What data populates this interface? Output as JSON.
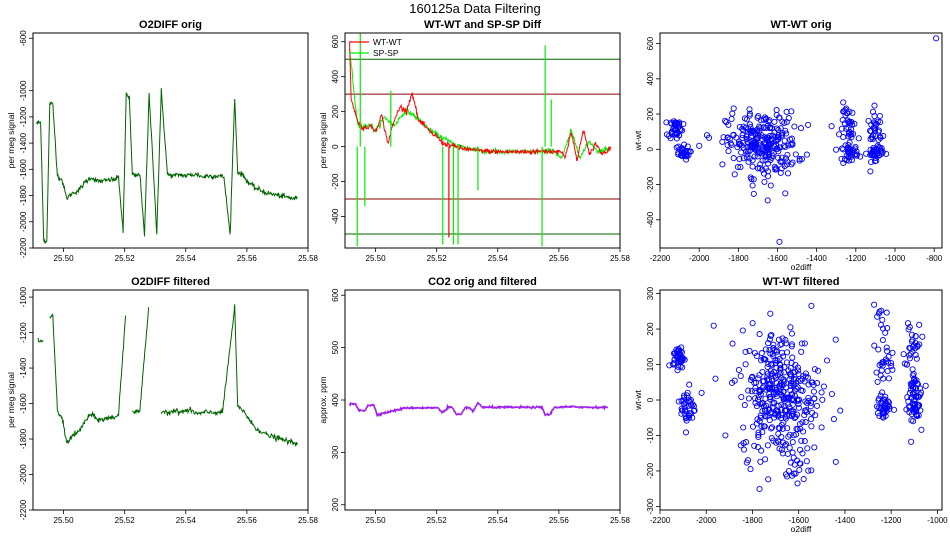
{
  "figure": {
    "title": "160125a   Data Filtering"
  },
  "colors": {
    "o2diff": "#006400",
    "wtwt": "#ff0000",
    "spsp": "#00ee00",
    "scatter": "#0000ff",
    "co2": "#a020f0",
    "line_red_lim": "#8b0000",
    "line_green_lim": "#006400"
  },
  "chart_data": [
    {
      "id": "o2diff_orig",
      "type": "line",
      "title": "O2DIFF orig",
      "xlabel": "",
      "ylabel": "per meg signal",
      "xlim": [
        25.49,
        25.58
      ],
      "ylim": [
        -2200,
        -560
      ],
      "xticks": [
        25.5,
        25.52,
        25.54,
        25.56,
        25.58
      ],
      "xtick_labels": [
        "25.50",
        "25.52",
        "25.54",
        "25.56",
        "25.58"
      ],
      "yticks": [
        -600,
        -1000,
        -1200,
        -1400,
        -1600,
        -1800,
        -2000,
        -2200
      ],
      "ytick_labels": [
        "-600",
        "-1000",
        "-1200",
        "-1400",
        "-1600",
        "-1800",
        "-2000",
        "-2200"
      ],
      "series": [
        {
          "name": "O2DIFF",
          "x": [
            25.4912,
            25.4925,
            25.4935,
            25.4945,
            25.4955,
            25.4965,
            25.498,
            25.4995,
            25.501,
            25.503,
            25.505,
            25.507,
            25.509,
            25.511,
            25.513,
            25.515,
            25.5165,
            25.518,
            25.5195,
            25.5205,
            25.5215,
            25.5225,
            25.5235,
            25.525,
            25.5265,
            25.528,
            25.5295,
            25.5305,
            25.532,
            25.534,
            25.536,
            25.538,
            25.54,
            25.542,
            25.544,
            25.5455,
            25.5465,
            25.548,
            25.5495,
            25.551,
            25.5525,
            25.5545,
            25.556,
            25.557,
            25.5585,
            25.5605,
            25.5625,
            25.5645,
            25.5665,
            25.5685,
            25.5705,
            25.5725,
            25.5745,
            25.5765
          ],
          "y": [
            -1250,
            -1240,
            -2140,
            -2150,
            -1090,
            -1110,
            -1650,
            -1680,
            -1820,
            -1780,
            -1760,
            -1700,
            -1660,
            -1690,
            -1690,
            -1680,
            -1680,
            -1660,
            -2080,
            -1020,
            -1050,
            -1640,
            -1650,
            -1640,
            -2100,
            -1030,
            -1640,
            -2090,
            -1000,
            -1640,
            -1650,
            -1640,
            -1650,
            -1640,
            -1640,
            -1660,
            -1650,
            -1650,
            -1650,
            -1650,
            -1660,
            -2100,
            -1060,
            -1620,
            -1640,
            -1700,
            -1740,
            -1760,
            -1780,
            -1790,
            -1800,
            -1810,
            -1820,
            -1820
          ]
        }
      ]
    },
    {
      "id": "wtwt_spsp_diff",
      "type": "line",
      "title": "WT-WT and SP-SP Diff",
      "xlabel": "",
      "ylabel": "per meg signal",
      "xlim": [
        25.49,
        25.58
      ],
      "ylim": [
        -580,
        650
      ],
      "xticks": [
        25.5,
        25.52,
        25.54,
        25.56,
        25.58
      ],
      "xtick_labels": [
        "25.50",
        "25.52",
        "25.54",
        "25.56",
        "25.58"
      ],
      "yticks": [
        600,
        400,
        200,
        0,
        -200,
        -400
      ],
      "ytick_labels": [
        "600",
        "400",
        "200",
        "0",
        "-200",
        "-400"
      ],
      "hlines": [
        {
          "value": 500,
          "color": "green"
        },
        {
          "value": 300,
          "color": "darkred"
        },
        {
          "value": -300,
          "color": "darkred"
        },
        {
          "value": -500,
          "color": "green"
        }
      ],
      "legend": [
        "WT-WT",
        "SP-SP"
      ],
      "legend_position": "top-left",
      "series": [
        {
          "name": "WT-WT",
          "x": [
            25.4915,
            25.492,
            25.494,
            25.496,
            25.498,
            25.5,
            25.502,
            25.504,
            25.506,
            25.508,
            25.51,
            25.512,
            25.514,
            25.516,
            25.518,
            25.52,
            25.522,
            25.525,
            25.528,
            25.532,
            25.536,
            25.54,
            25.545,
            25.55,
            25.555,
            25.558,
            25.56,
            25.562,
            25.564,
            25.566,
            25.568,
            25.57,
            25.572,
            25.574,
            25.576,
            25.577
          ],
          "y": [
            600,
            280,
            150,
            100,
            120,
            90,
            180,
            20,
            140,
            230,
            200,
            310,
            150,
            120,
            80,
            60,
            20,
            5,
            -10,
            -20,
            -25,
            -30,
            -30,
            -30,
            -25,
            -30,
            -20,
            -60,
            80,
            -80,
            100,
            -50,
            20,
            -40,
            -20,
            -10
          ]
        },
        {
          "name": "SP-SP",
          "x": [
            25.4915,
            25.494,
            25.496,
            25.498,
            25.5,
            25.503,
            25.506,
            25.51,
            25.514,
            25.518,
            25.522,
            25.526,
            25.53,
            25.535,
            25.54,
            25.545,
            25.55,
            25.555,
            25.558,
            25.561,
            25.564,
            25.567,
            25.57,
            25.573,
            25.576
          ],
          "y": [
            560,
            140,
            110,
            130,
            90,
            170,
            120,
            210,
            160,
            90,
            50,
            10,
            -10,
            -25,
            -30,
            -30,
            -30,
            -30,
            -20,
            -70,
            90,
            -60,
            30,
            -30,
            -10
          ]
        }
      ],
      "spikes": [
        {
          "x": 25.494,
          "y": -570,
          "series": "SP-SP"
        },
        {
          "x": 25.495,
          "y": 650,
          "series": "SP-SP"
        },
        {
          "x": 25.4965,
          "y": -340,
          "series": "SP-SP"
        },
        {
          "x": 25.505,
          "y": 320,
          "series": "SP-SP"
        },
        {
          "x": 25.522,
          "y": -560,
          "series": "SP-SP"
        },
        {
          "x": 25.524,
          "y": -520,
          "series": "WT-WT"
        },
        {
          "x": 25.5255,
          "y": -560,
          "series": "SP-SP"
        },
        {
          "x": 25.527,
          "y": -560,
          "series": "SP-SP"
        },
        {
          "x": 25.5335,
          "y": -250,
          "series": "SP-SP"
        },
        {
          "x": 25.5545,
          "y": -570,
          "series": "SP-SP"
        },
        {
          "x": 25.5575,
          "y": 270,
          "series": "SP-SP"
        },
        {
          "x": 25.5555,
          "y": 580,
          "series": "SP-SP"
        }
      ]
    },
    {
      "id": "wtwt_orig",
      "type": "scatter",
      "title": "WT-WT orig",
      "xlabel": "o2diff",
      "ylabel": "wt-wt",
      "xlim": [
        -2200,
        -760
      ],
      "ylim": [
        -560,
        660
      ],
      "xticks": [
        -2200,
        -2000,
        -1800,
        -1600,
        -1400,
        -1200,
        -1000,
        -800
      ],
      "xtick_labels": [
        "-2200",
        "-2000",
        "-1800",
        "-1600",
        "-1400",
        "-1200",
        "-1000",
        "-800"
      ],
      "yticks": [
        600,
        400,
        200,
        0,
        -200,
        -400
      ],
      "ytick_labels": [
        "600",
        "400",
        "200",
        "0",
        "-200",
        "-400"
      ],
      "clusters": [
        {
          "cx": -2120,
          "cy": 120,
          "sx": 18,
          "sy": 30,
          "n": 40
        },
        {
          "cx": -2090,
          "cy": -20,
          "sx": 20,
          "sy": 20,
          "n": 30
        },
        {
          "cx": -1680,
          "cy": 30,
          "sx": 90,
          "sy": 90,
          "n": 260
        },
        {
          "cx": -1230,
          "cy": 120,
          "sx": 25,
          "sy": 70,
          "n": 40
        },
        {
          "cx": -1230,
          "cy": -20,
          "sx": 20,
          "sy": 20,
          "n": 30
        },
        {
          "cx": -1100,
          "cy": 80,
          "sx": 20,
          "sy": 70,
          "n": 40
        },
        {
          "cx": -1100,
          "cy": -20,
          "sx": 20,
          "sy": 20,
          "n": 30
        }
      ],
      "points": [
        {
          "x": -790,
          "y": 630
        },
        {
          "x": -1590,
          "y": -525
        },
        {
          "x": -1650,
          "y": -290
        },
        {
          "x": -1850,
          "y": -10
        },
        {
          "x": -2000,
          "y": 20
        },
        {
          "x": -1960,
          "y": 80
        },
        {
          "x": -1450,
          "y": -30
        },
        {
          "x": -1560,
          "y": -250
        }
      ]
    },
    {
      "id": "o2diff_filtered",
      "type": "line",
      "title": "O2DIFF filtered",
      "xlabel": "",
      "ylabel": "per meg signal",
      "xlim": [
        25.49,
        25.58
      ],
      "ylim": [
        -2200,
        -960
      ],
      "xticks": [
        25.5,
        25.52,
        25.54,
        25.56,
        25.58
      ],
      "xtick_labels": [
        "25.50",
        "25.52",
        "25.54",
        "25.56",
        "25.58"
      ],
      "yticks": [
        -1000,
        -1200,
        -1400,
        -1600,
        -1800,
        -2000,
        -2200
      ],
      "ytick_labels": [
        "-1000",
        "-1200",
        "-1400",
        "-1600",
        "-1800",
        "-2000",
        "-2200"
      ],
      "series": [
        {
          "name": "O2DIFF",
          "x": [
            25.4915,
            25.4935,
            25.4945,
            25.4955,
            25.4965,
            25.498,
            25.4995,
            25.501,
            25.503,
            25.505,
            25.507,
            25.509,
            25.511,
            25.513,
            25.515,
            25.5165,
            25.518,
            25.5205,
            25.5215,
            25.5225,
            25.5235,
            25.525,
            25.528,
            25.5305,
            25.532,
            25.534,
            25.536,
            25.538,
            25.54,
            25.542,
            25.544,
            25.546,
            25.548,
            25.55,
            25.552,
            25.556,
            25.557,
            25.559,
            25.561,
            25.563,
            25.565,
            25.567,
            25.569,
            25.571,
            25.573,
            25.575,
            25.5765
          ],
          "y": [
            -1240,
            -1260,
            null,
            -1100,
            -1110,
            -1650,
            -1680,
            -1820,
            -1780,
            -1760,
            -1700,
            -1660,
            -1690,
            -1690,
            -1680,
            -1680,
            -1660,
            -1050,
            null,
            -1640,
            -1650,
            -1640,
            -1030,
            null,
            -1640,
            -1650,
            -1640,
            -1650,
            -1640,
            -1640,
            -1660,
            -1650,
            -1650,
            -1650,
            -1650,
            -1060,
            -1620,
            -1640,
            -1700,
            -1740,
            -1760,
            -1780,
            -1790,
            -1800,
            -1810,
            -1820,
            -1820
          ]
        }
      ]
    },
    {
      "id": "co2_orig_filtered",
      "type": "line",
      "title": "CO2 orig and filtered",
      "xlabel": "",
      "ylabel": "approx. ppm",
      "xlim": [
        25.49,
        25.58
      ],
      "ylim": [
        190,
        610
      ],
      "xticks": [
        25.5,
        25.52,
        25.54,
        25.56,
        25.58
      ],
      "xtick_labels": [
        "25.50",
        "25.52",
        "25.54",
        "25.56",
        "25.58"
      ],
      "yticks": [
        600,
        500,
        400,
        300,
        200
      ],
      "ytick_labels": [
        "600",
        "500",
        "400",
        "300",
        "200"
      ],
      "series": [
        {
          "name": "CO2",
          "x": [
            25.4915,
            25.4935,
            25.4945,
            25.4965,
            25.4975,
            25.4995,
            25.5005,
            25.51,
            25.5205,
            25.5215,
            25.5225,
            25.5235,
            25.525,
            25.5265,
            25.528,
            25.5295,
            25.5305,
            25.532,
            25.5335,
            25.535,
            25.54,
            25.5545,
            25.5555,
            25.557,
            25.5585,
            25.565,
            25.57,
            25.576
          ],
          "y": [
            392,
            392,
            380,
            380,
            390,
            390,
            372,
            385,
            385,
            378,
            378,
            386,
            386,
            372,
            372,
            386,
            386,
            378,
            395,
            386,
            386,
            386,
            372,
            372,
            386,
            387,
            386,
            386
          ]
        }
      ]
    },
    {
      "id": "wtwt_filtered",
      "type": "scatter",
      "title": "WT-WT filtered",
      "xlabel": "o2diff",
      "ylabel": "wt-wt",
      "xlim": [
        -2200,
        -980
      ],
      "ylim": [
        -310,
        310
      ],
      "xticks": [
        -2200,
        -2000,
        -1800,
        -1600,
        -1400,
        -1200,
        -1000
      ],
      "xtick_labels": [
        "-2200",
        "-2000",
        "-1800",
        "-1600",
        "-1400",
        "-1200",
        "-1000"
      ],
      "yticks": [
        300,
        200,
        100,
        0,
        -100,
        -200,
        -300
      ],
      "ytick_labels": [
        "300",
        "200",
        "100",
        "0",
        "-100",
        "-200",
        "-300"
      ],
      "clusters": [
        {
          "cx": -2120,
          "cy": 120,
          "sx": 12,
          "sy": 15,
          "n": 40
        },
        {
          "cx": -2080,
          "cy": -20,
          "sx": 15,
          "sy": 30,
          "n": 40
        },
        {
          "cx": -1680,
          "cy": 20,
          "sx": 85,
          "sy": 90,
          "n": 360
        },
        {
          "cx": -1620,
          "cy": -180,
          "sx": 30,
          "sy": 30,
          "n": 20
        },
        {
          "cx": -1240,
          "cy": 130,
          "sx": 22,
          "sy": 70,
          "n": 40
        },
        {
          "cx": -1230,
          "cy": -20,
          "sx": 15,
          "sy": 18,
          "n": 35
        },
        {
          "cx": -1110,
          "cy": 120,
          "sx": 18,
          "sy": 80,
          "n": 40
        },
        {
          "cx": -1100,
          "cy": 30,
          "sx": 15,
          "sy": 25,
          "n": 30
        },
        {
          "cx": -1100,
          "cy": -25,
          "sx": 15,
          "sy": 15,
          "n": 30
        }
      ],
      "points": [
        {
          "x": -1420,
          "y": -30
        },
        {
          "x": -1440,
          "y": 170
        },
        {
          "x": -2020,
          "y": 20
        },
        {
          "x": -1960,
          "y": 60
        }
      ]
    }
  ]
}
